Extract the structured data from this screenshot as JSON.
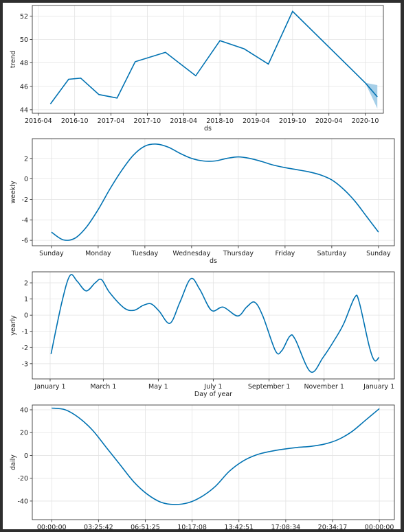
{
  "chart_data": [
    {
      "type": "line",
      "ylabel": "trend",
      "xlabel": "ds",
      "color": "#0072B2",
      "grid": true,
      "x": [
        "2016-06",
        "2016-09",
        "2016-11",
        "2017-02",
        "2017-05",
        "2017-08",
        "2018-01",
        "2018-06",
        "2018-10",
        "2019-02",
        "2019-06",
        "2019-10",
        "2020-10",
        "2020-12"
      ],
      "values": [
        44.5,
        46.6,
        46.7,
        45.3,
        45.0,
        48.1,
        48.9,
        46.9,
        49.9,
        49.2,
        47.9,
        52.4,
        46.3,
        45.1
      ],
      "band": {
        "color": "#a6cfe8",
        "x": [
          "2020-10",
          "2020-12"
        ],
        "upper": [
          46.3,
          46.1
        ],
        "lower": [
          46.3,
          44.1
        ]
      },
      "xlim": [
        "2016-03",
        "2021-01"
      ],
      "xticks": [
        "2016-04",
        "2016-10",
        "2017-04",
        "2017-10",
        "2018-04",
        "2018-10",
        "2019-04",
        "2019-10",
        "2020-04",
        "2020-10"
      ],
      "ylim": [
        43.7,
        52.9
      ],
      "yticks": [
        44,
        46,
        48,
        50,
        52
      ]
    },
    {
      "type": "line",
      "ylabel": "weekly",
      "xlabel": "ds",
      "color": "#0072B2",
      "grid": true,
      "x": [
        0,
        0.25,
        0.5,
        0.75,
        1,
        1.25,
        1.5,
        1.75,
        2,
        2.25,
        2.5,
        2.75,
        3,
        3.25,
        3.5,
        3.75,
        4,
        4.25,
        4.5,
        4.75,
        5,
        5.25,
        5.5,
        5.75,
        6,
        6.25,
        6.5,
        6.75,
        7
      ],
      "values": [
        -5.2,
        -5.95,
        -5.8,
        -4.7,
        -3.0,
        -1.0,
        0.8,
        2.3,
        3.2,
        3.4,
        3.1,
        2.5,
        2.0,
        1.75,
        1.75,
        2.0,
        2.15,
        2.0,
        1.7,
        1.35,
        1.1,
        0.9,
        0.7,
        0.4,
        -0.1,
        -1.0,
        -2.2,
        -3.7,
        -5.2
      ],
      "xlim": [
        -0.41,
        7.34
      ],
      "xticks": [
        {
          "value": 0,
          "label": "Sunday"
        },
        {
          "value": 1,
          "label": "Monday"
        },
        {
          "value": 2,
          "label": "Tuesday"
        },
        {
          "value": 3,
          "label": "Wednesday"
        },
        {
          "value": 4,
          "label": "Thursday"
        },
        {
          "value": 5,
          "label": "Friday"
        },
        {
          "value": 6,
          "label": "Saturday"
        },
        {
          "value": 7,
          "label": "Sunday"
        }
      ],
      "ylim": [
        -6.53,
        3.93
      ],
      "yticks": [
        -6,
        -4,
        -2,
        0,
        2
      ]
    },
    {
      "type": "line",
      "ylabel": "yearly",
      "xlabel": "Day of year",
      "color": "#0072B2",
      "grid": true,
      "x": [
        1,
        13,
        22,
        30,
        40,
        50,
        57,
        66,
        82,
        93,
        103,
        112,
        121,
        133,
        144,
        156,
        166,
        179,
        192,
        208,
        218,
        227,
        236,
        250,
        257,
        266,
        272,
        289,
        303,
        317,
        326,
        338,
        343,
        354,
        360,
        365
      ],
      "values": [
        -2.4,
        0.8,
        2.45,
        2.1,
        1.5,
        2.0,
        2.2,
        1.4,
        0.45,
        0.3,
        0.6,
        0.7,
        0.25,
        -0.5,
        0.8,
        2.25,
        1.6,
        0.3,
        0.5,
        -0.05,
        0.5,
        0.8,
        -0.05,
        -2.2,
        -2.2,
        -1.3,
        -1.5,
        -3.5,
        -2.6,
        -1.4,
        -0.5,
        1.1,
        0.8,
        -1.9,
        -2.8,
        -2.6
      ],
      "xlim": [
        -19.8,
        382
      ],
      "xticks": [
        {
          "value": 0,
          "label": "January 1"
        },
        {
          "value": 59,
          "label": "March 1"
        },
        {
          "value": 120,
          "label": "May 1"
        },
        {
          "value": 181,
          "label": "July 1"
        },
        {
          "value": 243,
          "label": "September 1"
        },
        {
          "value": 304,
          "label": "November 1"
        },
        {
          "value": 365,
          "label": "January 1"
        }
      ],
      "ylim": [
        -3.94,
        2.68
      ],
      "yticks": [
        -3,
        -2,
        -1,
        0,
        1,
        2
      ]
    },
    {
      "type": "line",
      "ylabel": "daily",
      "xlabel": "ds",
      "color": "#0072B2",
      "grid": true,
      "x": [
        0,
        1,
        2,
        3,
        4,
        5,
        6,
        7,
        8,
        9,
        10,
        11,
        12,
        13,
        14,
        15,
        16,
        17,
        18,
        19,
        20,
        21,
        22,
        23,
        24
      ],
      "values": [
        41.5,
        40,
        33,
        22,
        7,
        -8,
        -23,
        -34,
        -41,
        -43,
        -41.5,
        -36,
        -27,
        -14,
        -5,
        0.5,
        3.5,
        5.5,
        7,
        8,
        10,
        14,
        21,
        31,
        41
      ],
      "xlim": [
        -1.42,
        25.1
      ],
      "xticks": [
        {
          "value": 0,
          "label": "00:00:00"
        },
        {
          "value": 3.4286,
          "label": "03:25:42"
        },
        {
          "value": 6.8571,
          "label": "06:51:25"
        },
        {
          "value": 10.2857,
          "label": "10:17:08"
        },
        {
          "value": 13.7143,
          "label": "13:42:51"
        },
        {
          "value": 17.1429,
          "label": "17:08:34"
        },
        {
          "value": 20.5714,
          "label": "20:34:17"
        },
        {
          "value": 24,
          "label": "00:00:00"
        }
      ],
      "ylim": [
        -56.3,
        44.2
      ],
      "yticks": [
        -40,
        -20,
        0,
        20,
        40
      ]
    }
  ]
}
